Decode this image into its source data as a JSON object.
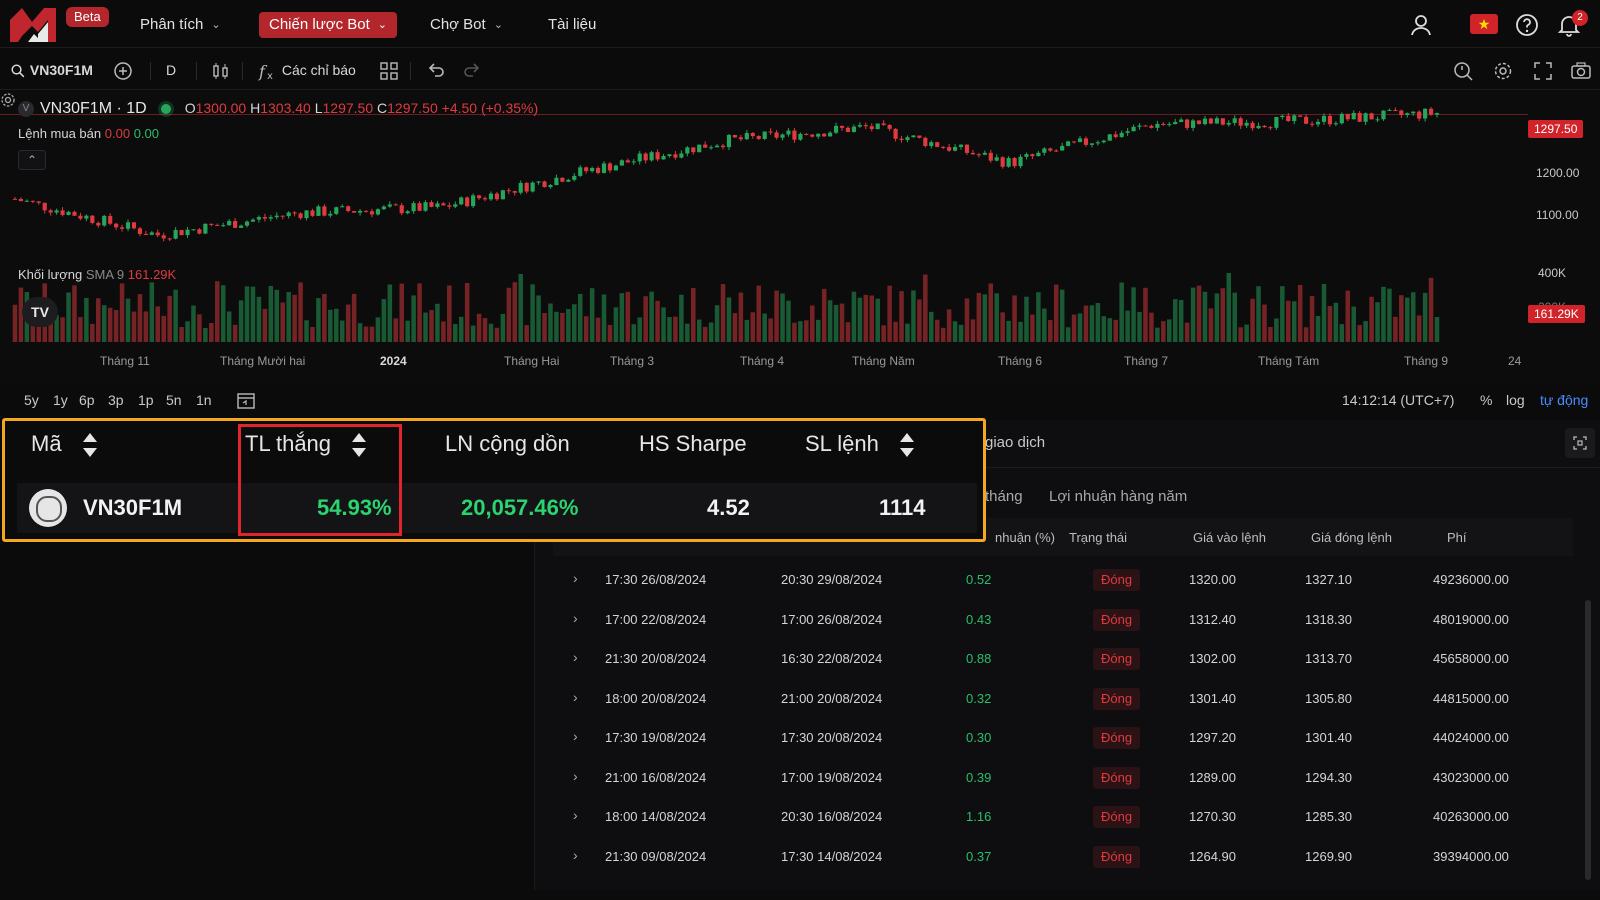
{
  "nav": {
    "beta": "Beta",
    "items": [
      {
        "label": "Phân tích",
        "has_chevron": true
      },
      {
        "label": "Chiến lược Bot",
        "has_chevron": true,
        "active": true
      },
      {
        "label": "Chợ Bot",
        "has_chevron": true
      },
      {
        "label": "Tài liệu",
        "has_chevron": false
      }
    ],
    "notification_count": "2",
    "icons": [
      "user-icon",
      "vietnam-flag-icon",
      "help-icon",
      "bell-icon"
    ]
  },
  "toolbar": {
    "symbol": "VN30F1M",
    "interval": "D",
    "indicators_label": "Các chỉ báo"
  },
  "chart": {
    "title": "VN30F1M · 1D",
    "ohlc": {
      "o_label": "O",
      "o": "1300.00",
      "h_label": "H",
      "h": "1303.40",
      "l_label": "L",
      "l": "1297.50",
      "c_label": "C",
      "c": "1297.50",
      "change": "+4.50 (+0.35%)"
    },
    "orders_label": "Lệnh mua bán",
    "orders_v1": "0.00",
    "orders_v2": "0.00",
    "volume_label": "Khối lượng",
    "volume_sma": "SMA 9",
    "volume_value": "161.29K",
    "last_price_tag": "1297.50",
    "volume_tag": "161.29K",
    "price_axis": [
      "1200.00",
      "1100.00"
    ],
    "volume_axis": [
      "400K",
      "200K"
    ],
    "time_axis": [
      "Tháng 11",
      "Tháng Mười hai",
      "2024",
      "Tháng Hai",
      "Tháng 3",
      "Tháng 4",
      "Tháng Năm",
      "Tháng 6",
      "Tháng 7",
      "Tháng Tám",
      "Tháng 9",
      "24"
    ],
    "tv_logo": "TV",
    "colors": {
      "up": "#26a65b",
      "down": "#e03a3e"
    }
  },
  "chart_data": {
    "type": "line",
    "title": "VN30F1M · 1D",
    "x": [
      "Tháng 11",
      "Tháng Mười hai",
      "2024",
      "Tháng Hai",
      "Tháng 3",
      "Tháng 4",
      "Tháng Năm",
      "Tháng 6",
      "Tháng 7",
      "Tháng Tám",
      "Tháng 9"
    ],
    "series": [
      {
        "values": [
          1145,
          1080,
          1120,
          1130,
          1195,
          1250,
          1275,
          1210,
          1280,
          1285,
          1300
        ]
      }
    ],
    "ylim": [
      1040,
      1320
    ],
    "last": 1297.5
  },
  "rangebar": {
    "ranges": [
      "5y",
      "1y",
      "6p",
      "3p",
      "1p",
      "5n",
      "1n"
    ],
    "clock": "14:12:14 (UTC+7)",
    "percent": "%",
    "log": "log",
    "auto": "tự động"
  },
  "summary": {
    "headers": [
      "Mã",
      "TL thắng",
      "LN cộng dồn",
      "HS Sharpe",
      "SL lệnh"
    ],
    "row": {
      "symbol": "VN30F1M",
      "win_rate": "54.93%",
      "cumulative": "20,057.46%",
      "sharpe": "4.52",
      "orders": "1114"
    }
  },
  "trades": {
    "tab_history": "giao dịch",
    "sub_tabs": [
      "tháng",
      "Lợi nhuận hàng năm"
    ],
    "headers": {
      "profit": "nhuận (%)",
      "status": "Trạng thái",
      "entry": "Giá vào lệnh",
      "exit": "Giá đóng lệnh",
      "fee": "Phí"
    },
    "rows": [
      {
        "open": "17:30 26/08/2024",
        "close": "20:30 29/08/2024",
        "profit": "0.52",
        "status": "Đóng",
        "entry": "1320.00",
        "exit": "1327.10",
        "fee": "49236000.00"
      },
      {
        "open": "17:00 22/08/2024",
        "close": "17:00 26/08/2024",
        "profit": "0.43",
        "status": "Đóng",
        "entry": "1312.40",
        "exit": "1318.30",
        "fee": "48019000.00"
      },
      {
        "open": "21:30 20/08/2024",
        "close": "16:30 22/08/2024",
        "profit": "0.88",
        "status": "Đóng",
        "entry": "1302.00",
        "exit": "1313.70",
        "fee": "45658000.00"
      },
      {
        "open": "18:00 20/08/2024",
        "close": "21:00 20/08/2024",
        "profit": "0.32",
        "status": "Đóng",
        "entry": "1301.40",
        "exit": "1305.80",
        "fee": "44815000.00"
      },
      {
        "open": "17:30 19/08/2024",
        "close": "17:30 20/08/2024",
        "profit": "0.30",
        "status": "Đóng",
        "entry": "1297.20",
        "exit": "1301.40",
        "fee": "44024000.00"
      },
      {
        "open": "21:00 16/08/2024",
        "close": "17:00 19/08/2024",
        "profit": "0.39",
        "status": "Đóng",
        "entry": "1289.00",
        "exit": "1294.30",
        "fee": "43023000.00"
      },
      {
        "open": "18:00 14/08/2024",
        "close": "20:30 16/08/2024",
        "profit": "1.16",
        "status": "Đóng",
        "entry": "1270.30",
        "exit": "1285.30",
        "fee": "40263000.00"
      },
      {
        "open": "21:30 09/08/2024",
        "close": "17:30 14/08/2024",
        "profit": "0.37",
        "status": "Đóng",
        "entry": "1264.90",
        "exit": "1269.90",
        "fee": "39394000.00"
      }
    ]
  }
}
